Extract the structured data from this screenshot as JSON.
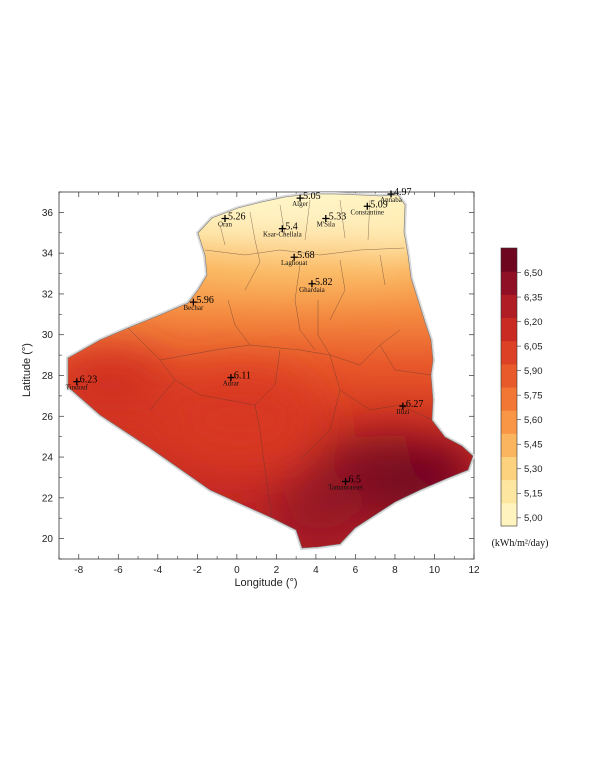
{
  "map": {
    "xlabel": "Longitude (°)",
    "ylabel": "Latitude (°)",
    "x_ticks": [
      "-8",
      "-6",
      "-4",
      "-2",
      "0",
      "2",
      "4",
      "6",
      "8",
      "10",
      "12"
    ],
    "y_ticks": [
      "20",
      "22",
      "24",
      "26",
      "28",
      "30",
      "32",
      "34",
      "36"
    ],
    "xlim": [
      -9,
      12
    ],
    "ylim": [
      19,
      37
    ]
  },
  "colorbar": {
    "unit": "(kWh/m²/day)",
    "range": [
      4.95,
      6.65
    ],
    "ticks": [
      "5,00",
      "5,15",
      "5,30",
      "5,45",
      "5,60",
      "5,75",
      "5,90",
      "6,05",
      "6,20",
      "6,35",
      "6,50"
    ],
    "colors": [
      "#fff3c0",
      "#fde7a0",
      "#fcd27e",
      "#fbb55f",
      "#f99646",
      "#f27634",
      "#e85a29",
      "#dc4025",
      "#c92b23",
      "#b01d24",
      "#8f0f24",
      "#6e0620"
    ]
  },
  "stations": [
    {
      "name": "Alger",
      "value": "5.05",
      "lon": 3.2,
      "lat": 36.7
    },
    {
      "name": "Annaba",
      "value": "4.97",
      "lon": 7.8,
      "lat": 36.9
    },
    {
      "name": "Constantine",
      "value": "5.09",
      "lon": 6.6,
      "lat": 36.3
    },
    {
      "name": "Oran",
      "value": "5.26",
      "lon": -0.6,
      "lat": 35.7
    },
    {
      "name": "M'Sila",
      "value": "5.33",
      "lon": 4.5,
      "lat": 35.7
    },
    {
      "name": "Ksar-Chellala",
      "value": "5.4",
      "lon": 2.3,
      "lat": 35.2
    },
    {
      "name": "Laghouat",
      "value": "5.68",
      "lon": 2.9,
      "lat": 33.8
    },
    {
      "name": "Ghardaia",
      "value": "5.82",
      "lon": 3.8,
      "lat": 32.5
    },
    {
      "name": "Bechar",
      "value": "5.96",
      "lon": -2.2,
      "lat": 31.6
    },
    {
      "name": "Adrar",
      "value": "6.11",
      "lon": -0.3,
      "lat": 27.9
    },
    {
      "name": "Tindouf",
      "value": "6.23",
      "lon": -8.1,
      "lat": 27.7
    },
    {
      "name": "Illizi",
      "value": "6.27",
      "lon": 8.4,
      "lat": 26.5
    },
    {
      "name": "Tamanrasset",
      "value": "6.5",
      "lon": 5.5,
      "lat": 22.8
    }
  ]
}
